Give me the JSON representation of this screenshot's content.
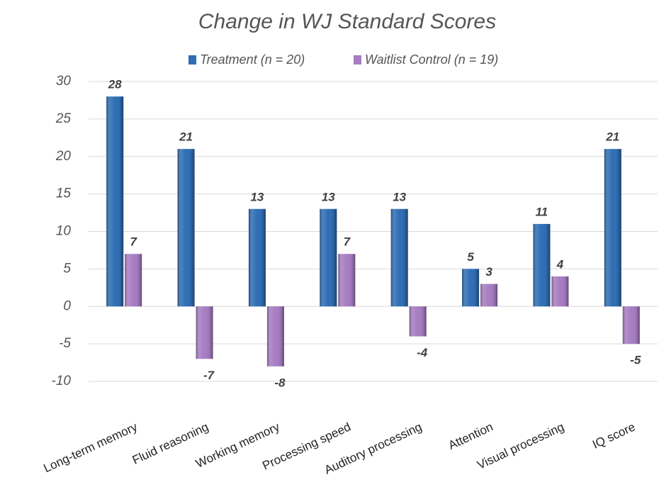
{
  "chart_data": {
    "type": "bar",
    "title": "Change in WJ Standard Scores",
    "categories": [
      "Long-term memory",
      "Fluid reasoning",
      "Working memory",
      "Processing speed",
      "Auditory processing",
      "Attention",
      "Visual processing",
      "IQ score"
    ],
    "series": [
      {
        "name": "Treatment (n = 20)",
        "color": "#2e6db4",
        "values": [
          28,
          21,
          13,
          13,
          13,
          5,
          11,
          21
        ]
      },
      {
        "name": "Waitlist Control (n = 19)",
        "color": "#a77cc2",
        "values": [
          7,
          -7,
          -8,
          7,
          -4,
          3,
          4,
          -5
        ]
      }
    ],
    "ylim": [
      -10,
      30
    ],
    "yticks": [
      -10,
      -5,
      0,
      5,
      10,
      15,
      20,
      25,
      30
    ],
    "grid": true,
    "legend": "top"
  }
}
